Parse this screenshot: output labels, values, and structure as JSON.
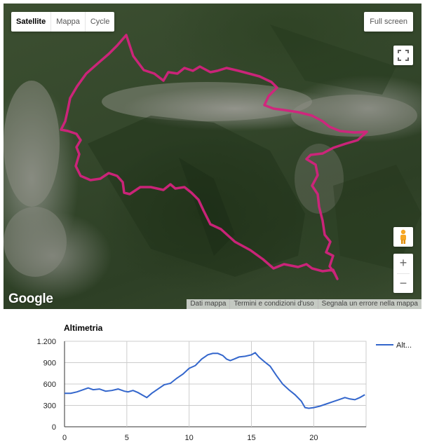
{
  "map": {
    "map_types": [
      "Satellite",
      "Mappa",
      "Cycle"
    ],
    "active_map_type": "Satellite",
    "fullscreen_label": "Full screen",
    "logo_text": "Google",
    "zoom_in_label": "+",
    "zoom_out_label": "−",
    "attribution": [
      "Dati mappa",
      "Termini e condizioni d'uso",
      "Segnala un errore nella mappa"
    ],
    "route_color": "#d3237d",
    "icons": [
      "fullscreen-icon",
      "pegman-icon"
    ]
  },
  "chart_data": {
    "type": "line",
    "title": "Altimetria",
    "legend_label": "Alt...",
    "legend_position": "right",
    "series_color": "#3366cc",
    "xlim": [
      0,
      24.2
    ],
    "ylim": [
      0,
      1200
    ],
    "x_ticks": [
      0,
      5,
      10,
      15,
      20
    ],
    "y_ticks": [
      0,
      300,
      600,
      900,
      1200
    ],
    "y_tick_labels": [
      "0",
      "300",
      "600",
      "900",
      "1.200"
    ],
    "grid": true,
    "series": [
      {
        "name": "Alt...",
        "x": [
          0,
          0.5,
          1,
          1.5,
          1.9,
          2.3,
          2.8,
          3.3,
          3.8,
          4.3,
          4.8,
          5.1,
          5.5,
          5.9,
          6.3,
          6.6,
          7.0,
          7.5,
          8.0,
          8.5,
          9.0,
          9.5,
          10.0,
          10.5,
          11.0,
          11.5,
          11.9,
          12.3,
          12.7,
          13.0,
          13.3,
          13.6,
          14.0,
          14.5,
          15.0,
          15.3,
          15.6,
          16.0,
          16.5,
          17.0,
          17.5,
          18.0,
          18.5,
          19.0,
          19.3,
          19.6,
          20.0,
          20.5,
          21.0,
          21.5,
          22.0,
          22.5,
          22.9,
          23.3,
          23.7,
          24.1
        ],
        "values": [
          470,
          470,
          490,
          520,
          545,
          520,
          530,
          500,
          510,
          530,
          500,
          490,
          510,
          480,
          440,
          410,
          470,
          530,
          590,
          610,
          680,
          740,
          820,
          860,
          950,
          1010,
          1030,
          1030,
          1000,
          950,
          930,
          950,
          980,
          990,
          1010,
          1040,
          980,
          920,
          850,
          720,
          600,
          520,
          450,
          360,
          270,
          260,
          270,
          290,
          320,
          350,
          380,
          410,
          390,
          380,
          410,
          450
        ]
      }
    ]
  }
}
